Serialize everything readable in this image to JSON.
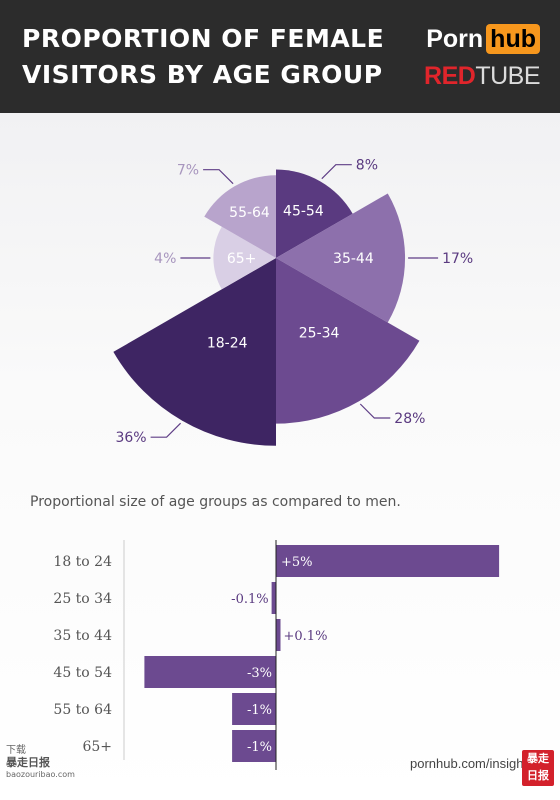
{
  "header": {
    "title_line1": "PROPORTION OF FEMALE",
    "title_line2": "VISITORS BY AGE GROUP",
    "logo_porn": "Porn",
    "logo_hub": "hub",
    "logo_red": "RED",
    "logo_tube": "TUBE"
  },
  "colors": {
    "header_bg": "#2c2c2c",
    "hub_orange": "#f7971d",
    "purple_dark": "#3e2563",
    "purple_mid": "#6c4a90",
    "purple_light": "#8d70ac",
    "purple_pale": "#b8a4cc",
    "label_purple": "#5f3e86"
  },
  "chart_data": [
    {
      "type": "pie",
      "subtype": "polar-area",
      "slices": [
        {
          "label": "45-54",
          "value": 8,
          "pct_label": "8%",
          "color": "#5a3a80"
        },
        {
          "label": "35-44",
          "value": 17,
          "pct_label": "17%",
          "color": "#8d70ac"
        },
        {
          "label": "25-34",
          "value": 28,
          "pct_label": "28%",
          "color": "#6c4a90"
        },
        {
          "label": "18-24",
          "value": 36,
          "pct_label": "36%",
          "color": "#3e2563"
        },
        {
          "label": "65+",
          "value": 4,
          "pct_label": "4%",
          "color": "#d9cfe5"
        },
        {
          "label": "55-64",
          "value": 7,
          "pct_label": "7%",
          "color": "#b8a4cc"
        }
      ]
    },
    {
      "type": "bar",
      "orientation": "horizontal",
      "title": "Proportional size of age groups as compared to men.",
      "categories": [
        "18 to 24",
        "25 to 34",
        "35 to 44",
        "45 to 54",
        "55 to 64",
        "65+"
      ],
      "values": [
        5,
        -0.1,
        0.1,
        -3,
        -1,
        -1
      ],
      "value_labels": [
        "+5%",
        "-0.1%",
        "+0.1%",
        "-3%",
        "-1%",
        "-1%"
      ],
      "xlim": [
        -3.1,
        5.2
      ],
      "color": "#6c4a90"
    }
  ],
  "footer": {
    "url": "pornhub.com/insights",
    "watermark_left_line1": "下载",
    "watermark_left_line2": "暴走日报",
    "watermark_left_line3": "baozouribao.com",
    "watermark_right_line1": "暴走",
    "watermark_right_line2": "日报"
  }
}
